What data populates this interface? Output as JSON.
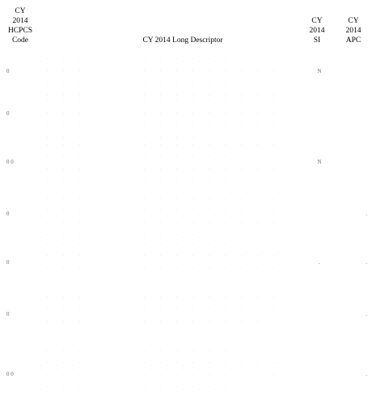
{
  "headers": {
    "code": "CY\n2014\nHCPCS\nCode",
    "description": "CY 2014 Long Descriptor",
    "si": "CY\n2014\nSI",
    "apc": "CY\n2014\nAPC"
  },
  "rows": [
    {
      "code": "0",
      "description": ". . . . . . . . . . . . . . . . . . . . . . . . . . . . . . . . . . . . . . . . . . . . . . . . . . . . . . . . . . . .",
      "si": "N",
      "apc": ""
    },
    {
      "code": "0",
      "description": ". . . . . . . . . . . . . . . . . . . . . . . . . . . . . . . . . . . . . . . . . . . . . . . . . . . . . . .",
      "si": "",
      "apc": ""
    },
    {
      "code": "0 0",
      "description": ". . . . . . . . . . . . . . . . . . . . . . . . . . . . . . . . . . . . . . . . . . . . . . . . . . . . . . . . . . . . . . . . . .",
      "si": "N",
      "apc": ""
    },
    {
      "code": "0",
      "description": ". . . . . . . . . . . . . . . . . . . . . . . . . . . . . . . . . . . . . . . . . . . . . . . . . . . . . . .",
      "si": "",
      "apc": "."
    },
    {
      "code": "0",
      "description": ". . . . . . . . . . . . . . . . . . . . . . . . . . . . . . . . . . . . . . . . . . . . . . . . . . . . . . . . . . . . . . . .",
      "si": ".",
      "apc": "."
    },
    {
      "code": "0",
      "description": ". . . . . . . . . . . . . . . . . . . . . . . . . . . . . . . . . . . . . . . . . . . .",
      "si": "",
      "apc": "."
    },
    {
      "code": "0 0",
      "description": ". . . . . . . . . . . . . . . . . . . . . . . . . . . . . . . . . . . . . . . . . . . . . . . . . . . . . . . . . .",
      "si": "",
      "apc": "."
    }
  ]
}
